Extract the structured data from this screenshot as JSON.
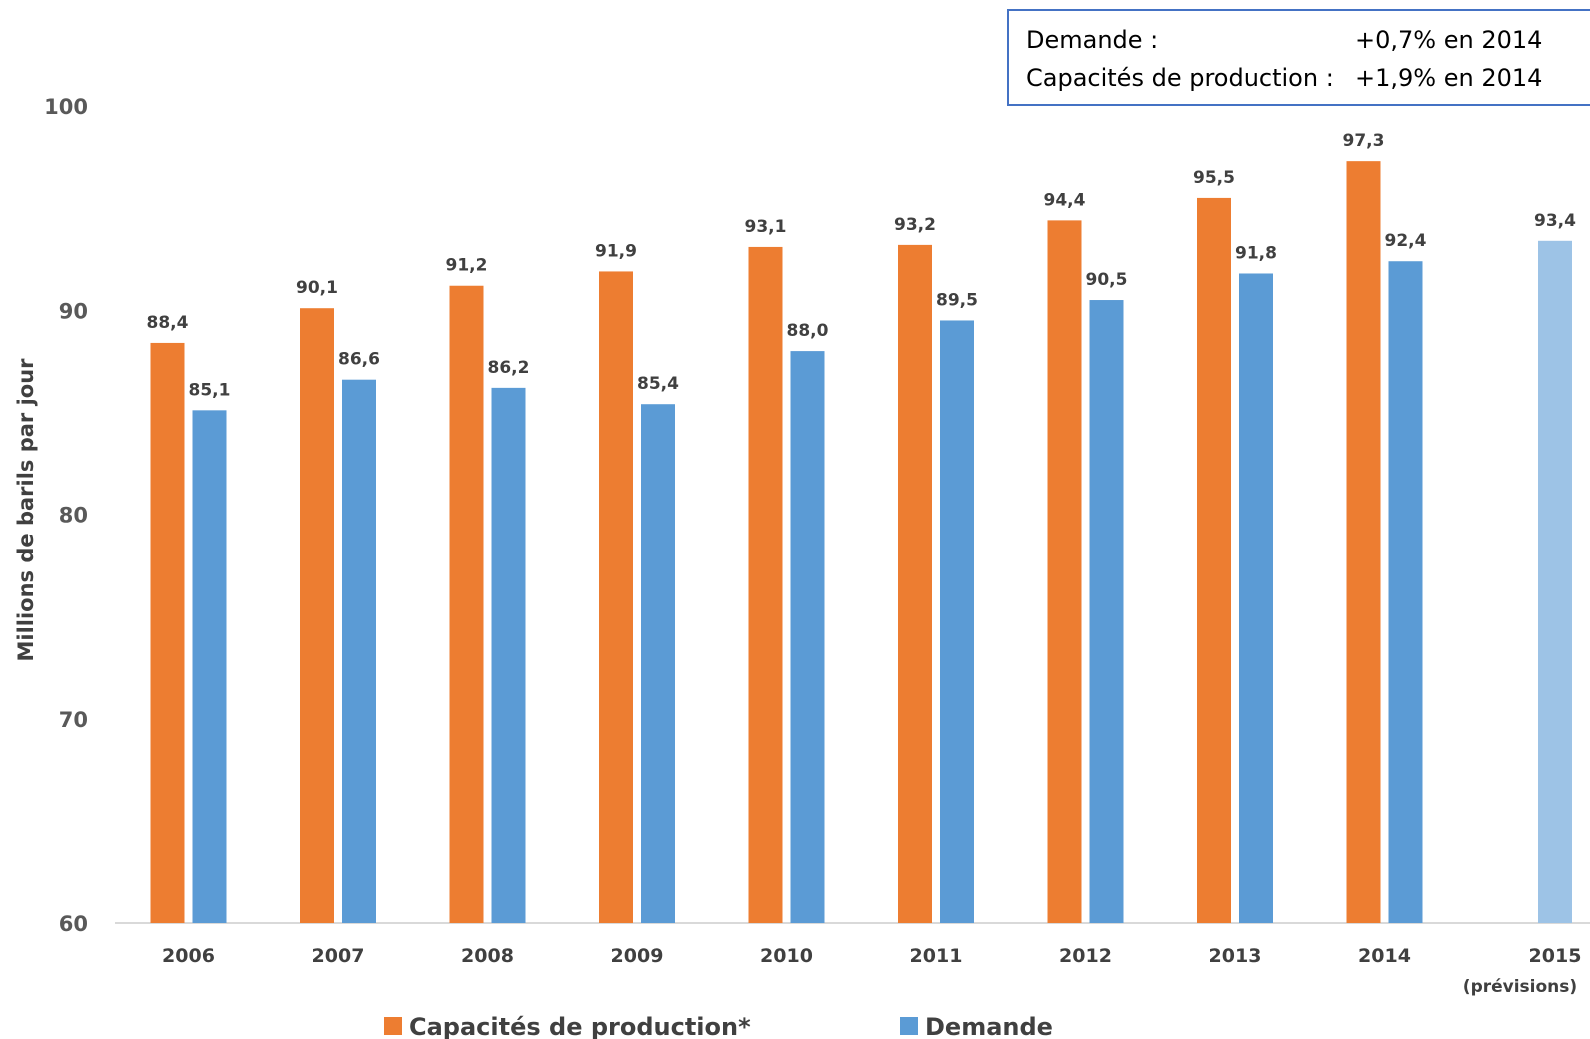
{
  "colors": {
    "production": "#ED7D31",
    "demand": "#5B9BD5",
    "forecast": "#9DC3E6",
    "note_border": "#4472C4",
    "axis": "#D9D9D9"
  },
  "note": {
    "line1_label": "Demande :",
    "line1_value": "+0,7% en 2014",
    "line2_label": "Capacités de production :",
    "line2_value": "+1,9% en 2014"
  },
  "chart_data": {
    "type": "bar",
    "ylabel": "Millions de barils par jour",
    "ylim": [
      60,
      100
    ],
    "yticks": [
      60,
      70,
      80,
      90,
      100
    ],
    "grid": false,
    "legend": "bottom",
    "categories": [
      "2006",
      "2007",
      "2008",
      "2009",
      "2010",
      "2011",
      "2012",
      "2013",
      "2014",
      "2015"
    ],
    "category_sublabels": [
      "",
      "",
      "",
      "",
      "",
      "",
      "",
      "",
      "",
      "(prévisions)"
    ],
    "series": [
      {
        "name": "Capacités de production*",
        "values": [
          88.4,
          90.1,
          91.2,
          91.9,
          93.1,
          93.2,
          94.4,
          95.5,
          97.3,
          null
        ],
        "labels": [
          "88,4",
          "90,1",
          "91,2",
          "91,9",
          "93,1",
          "93,2",
          "94,4",
          "95,5",
          "97,3",
          ""
        ]
      },
      {
        "name": "Demande",
        "values": [
          85.1,
          86.6,
          86.2,
          85.4,
          88.0,
          89.5,
          90.5,
          91.8,
          92.4,
          93.4
        ],
        "labels": [
          "85,1",
          "86,6",
          "86,2",
          "85,4",
          "88,0",
          "89,5",
          "90,5",
          "91,8",
          "92,4",
          "93,4"
        ]
      }
    ]
  }
}
